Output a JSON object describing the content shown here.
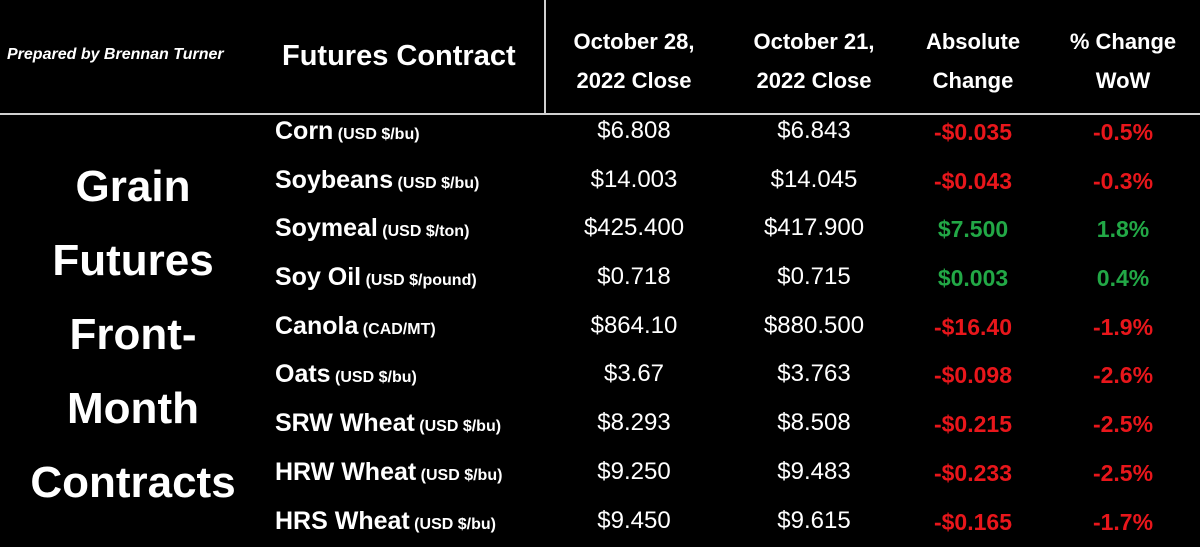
{
  "prepared_by": "Prepared by Brennan Turner",
  "headers": {
    "contract": "Futures Contract",
    "col1": [
      "October 28,",
      "2022 Close"
    ],
    "col2": [
      "October 21,",
      "2022 Close"
    ],
    "col3": [
      "Absolute",
      "Change"
    ],
    "col4": [
      "% Change",
      "WoW"
    ]
  },
  "side_title": [
    "Grain",
    "Futures",
    "Front-",
    "Month",
    "Contracts"
  ],
  "colors": {
    "negative": "#e8161b",
    "positive": "#22a846"
  },
  "rows": [
    {
      "name": "Corn",
      "unit": " (USD $/bu)",
      "oct28": "$6.808",
      "oct21": "$6.843",
      "abs": "-$0.035",
      "pct": "-0.5%",
      "dir": "neg"
    },
    {
      "name": "Soybeans",
      "unit": " (USD $/bu)",
      "oct28": "$14.003",
      "oct21": "$14.045",
      "abs": "-$0.043",
      "pct": "-0.3%",
      "dir": "neg"
    },
    {
      "name": "Soymeal",
      "unit": " (USD $/ton)",
      "oct28": "$425.400",
      "oct21": "$417.900",
      "abs": "$7.500",
      "pct": "1.8%",
      "dir": "pos"
    },
    {
      "name": "Soy Oil",
      "unit": " (USD $/pound)",
      "oct28": "$0.718",
      "oct21": "$0.715",
      "abs": "$0.003",
      "pct": "0.4%",
      "dir": "pos"
    },
    {
      "name": "Canola",
      "unit": " (CAD/MT)",
      "oct28": "$864.10",
      "oct21": "$880.500",
      "abs": "-$16.40",
      "pct": "-1.9%",
      "dir": "neg"
    },
    {
      "name": "Oats",
      "unit": " (USD $/bu)",
      "oct28": "$3.67",
      "oct21": "$3.763",
      "abs": "-$0.098",
      "pct": "-2.6%",
      "dir": "neg"
    },
    {
      "name": "SRW Wheat",
      "unit": " (USD $/bu)",
      "oct28": "$8.293",
      "oct21": "$8.508",
      "abs": "-$0.215",
      "pct": "-2.5%",
      "dir": "neg"
    },
    {
      "name": "HRW Wheat",
      "unit": " (USD $/bu)",
      "oct28": "$9.250",
      "oct21": "$9.483",
      "abs": "-$0.233",
      "pct": "-2.5%",
      "dir": "neg"
    },
    {
      "name": "HRS Wheat",
      "unit": " (USD $/bu)",
      "oct28": "$9.450",
      "oct21": "$9.615",
      "abs": "-$0.165",
      "pct": "-1.7%",
      "dir": "neg"
    }
  ]
}
